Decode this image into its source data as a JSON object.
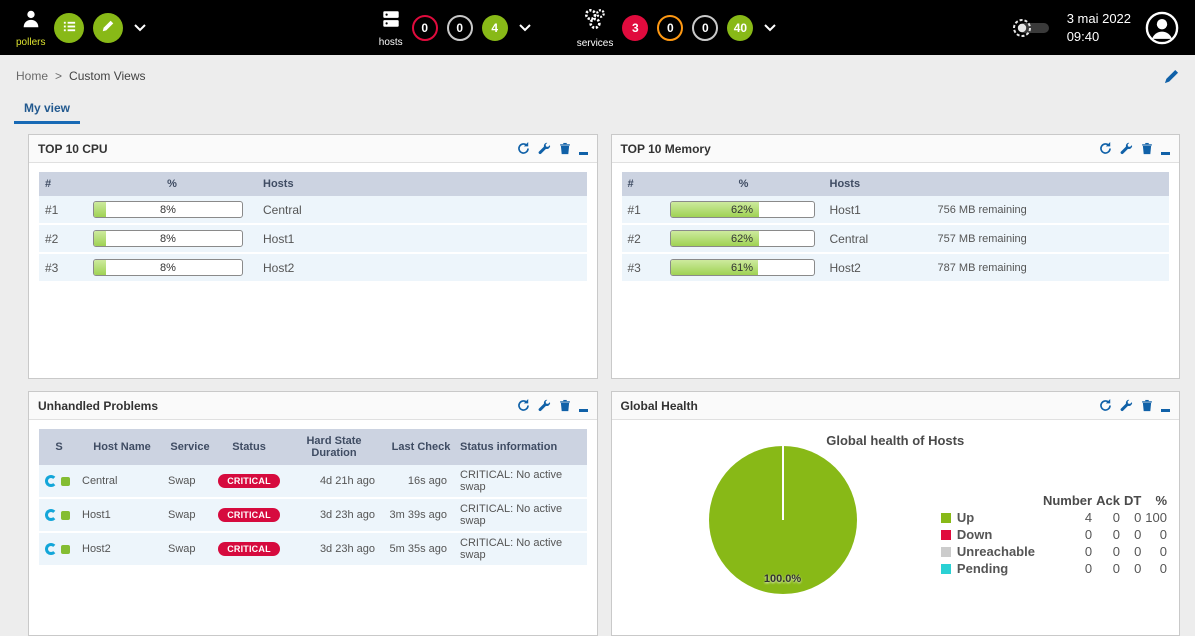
{
  "topbar": {
    "pollers": {
      "label": "pollers"
    },
    "hosts": {
      "label": "hosts",
      "counters": [
        {
          "state": "down",
          "value": "0"
        },
        {
          "state": "unreachable",
          "value": "0"
        },
        {
          "state": "up",
          "value": "4"
        }
      ]
    },
    "services": {
      "label": "services",
      "counters": [
        {
          "state": "critical",
          "value": "3"
        },
        {
          "state": "warning",
          "value": "0"
        },
        {
          "state": "unknown",
          "value": "0"
        },
        {
          "state": "ok",
          "value": "40"
        }
      ]
    },
    "clock": {
      "date": "3 mai 2022",
      "time": "09:40"
    }
  },
  "breadcrumb": {
    "separator": ">",
    "items": [
      "Home",
      "Custom Views"
    ]
  },
  "tabs": [
    {
      "label": "My view",
      "active": true
    }
  ],
  "colors": {
    "green": "#88b917",
    "red": "#e00b3d",
    "warning_orange": "#ff9913",
    "pending_cyan": "#2ad1d4",
    "unreachable_gray": "#cccccc",
    "accent_blue": "#1061a8",
    "critical_badge": "#d60b3e",
    "bar_fill_green": "#9fd254"
  },
  "panels": {
    "top_cpu": {
      "title": "TOP 10 CPU",
      "columns": [
        "#",
        "%",
        "Hosts"
      ],
      "rows": [
        {
          "rank": "#1",
          "percent": 8,
          "percent_label": "8%",
          "host": "Central"
        },
        {
          "rank": "#2",
          "percent": 8,
          "percent_label": "8%",
          "host": "Host1"
        },
        {
          "rank": "#3",
          "percent": 8,
          "percent_label": "8%",
          "host": "Host2"
        }
      ]
    },
    "top_memory": {
      "title": "TOP 10 Memory",
      "columns": [
        "#",
        "%",
        "Hosts"
      ],
      "rows": [
        {
          "rank": "#1",
          "percent": 62,
          "percent_label": "62%",
          "host": "Host1",
          "detail": "756 MB remaining"
        },
        {
          "rank": "#2",
          "percent": 62,
          "percent_label": "62%",
          "host": "Central",
          "detail": "757 MB remaining"
        },
        {
          "rank": "#3",
          "percent": 61,
          "percent_label": "61%",
          "host": "Host2",
          "detail": "787 MB remaining"
        }
      ]
    },
    "unhandled": {
      "title": "Unhandled Problems",
      "columns": [
        "S",
        "Host Name",
        "Service",
        "Status",
        "Hard State Duration",
        "Last Check",
        "Status information"
      ],
      "rows": [
        {
          "host": "Central",
          "service": "Swap",
          "status": "CRITICAL",
          "duration": "4d 21h ago",
          "last_check": "16s ago",
          "info": "CRITICAL: No active swap"
        },
        {
          "host": "Host1",
          "service": "Swap",
          "status": "CRITICAL",
          "duration": "3d 23h ago",
          "last_check": "3m 39s ago",
          "info": "CRITICAL: No active swap"
        },
        {
          "host": "Host2",
          "service": "Swap",
          "status": "CRITICAL",
          "duration": "3d 23h ago",
          "last_check": "5m 35s ago",
          "info": "CRITICAL: No active swap"
        }
      ]
    },
    "global_health": {
      "title": "Global Health",
      "chart_data": {
        "type": "pie",
        "title": "Global health of Hosts",
        "labels": [
          "Up",
          "Down",
          "Unreachable",
          "Pending"
        ],
        "values": [
          100,
          0,
          0,
          0
        ],
        "colors": [
          "#88b917",
          "#e00b3d",
          "#cccccc",
          "#2ad1d4"
        ],
        "annotation": "100.0%",
        "legend_position": "right"
      },
      "legend_columns": [
        "Number",
        "Ack",
        "DT",
        "%"
      ],
      "legend_rows": [
        {
          "number": "4",
          "ack": "0",
          "dt": "0",
          "percent": "100"
        },
        {
          "number": "0",
          "ack": "0",
          "dt": "0",
          "percent": "0"
        },
        {
          "number": "0",
          "ack": "0",
          "dt": "0",
          "percent": "0"
        },
        {
          "number": "0",
          "ack": "0",
          "dt": "0",
          "percent": "0"
        }
      ]
    }
  }
}
